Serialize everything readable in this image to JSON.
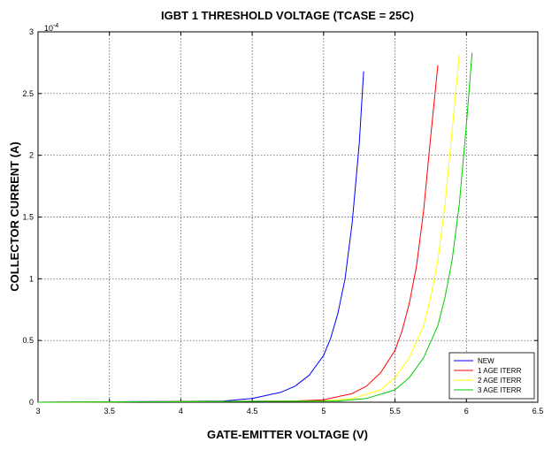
{
  "chart_data": {
    "type": "line",
    "title": "IGBT 1 THRESHOLD VOLTAGE (TCASE = 25C)",
    "xlabel": "GATE-EMITTER VOLTAGE (V)",
    "ylabel": "COLLECTOR CURRENT (A)",
    "y_exponent_label": "10",
    "y_exponent_power": "-4",
    "xlim": [
      3,
      6.5
    ],
    "ylim": [
      0,
      3
    ],
    "y_scale_factor": 0.0001,
    "x_ticks": [
      "3",
      "3.5",
      "4",
      "4.5",
      "5",
      "5.5",
      "6",
      "6.5"
    ],
    "y_ticks": [
      "0",
      "0.5",
      "1",
      "1.5",
      "2",
      "2.5",
      "3"
    ],
    "grid": true,
    "legend_position": "bottom-right",
    "series": [
      {
        "name": "NEW",
        "color": "#0000ff",
        "x": [
          3.0,
          4.3,
          4.5,
          4.7,
          4.8,
          4.9,
          5.0,
          5.05,
          5.1,
          5.15,
          5.2,
          5.25,
          5.28
        ],
        "y": [
          0.0,
          0.01,
          0.03,
          0.08,
          0.13,
          0.22,
          0.38,
          0.52,
          0.72,
          1.0,
          1.45,
          2.1,
          2.68
        ]
      },
      {
        "name": "1 AGE ITERR",
        "color": "#ff0000",
        "x": [
          3.0,
          4.8,
          5.0,
          5.2,
          5.3,
          5.4,
          5.5,
          5.55,
          5.6,
          5.65,
          5.7,
          5.75,
          5.8
        ],
        "y": [
          0.0,
          0.01,
          0.02,
          0.07,
          0.13,
          0.24,
          0.42,
          0.58,
          0.8,
          1.1,
          1.55,
          2.15,
          2.73
        ]
      },
      {
        "name": "2 AGE ITERR",
        "color": "#ffff00",
        "x": [
          3.0,
          5.0,
          5.2,
          5.4,
          5.5,
          5.6,
          5.7,
          5.75,
          5.8,
          5.85,
          5.9,
          5.95
        ],
        "y": [
          0.0,
          0.01,
          0.03,
          0.1,
          0.2,
          0.36,
          0.62,
          0.85,
          1.15,
          1.6,
          2.2,
          2.81
        ]
      },
      {
        "name": "3 AGE ITERR",
        "color": "#00cc00",
        "x": [
          3.0,
          5.1,
          5.3,
          5.5,
          5.6,
          5.7,
          5.8,
          5.85,
          5.9,
          5.95,
          6.0,
          6.04
        ],
        "y": [
          0.0,
          0.01,
          0.03,
          0.1,
          0.2,
          0.36,
          0.62,
          0.85,
          1.15,
          1.6,
          2.25,
          2.83
        ]
      }
    ]
  }
}
